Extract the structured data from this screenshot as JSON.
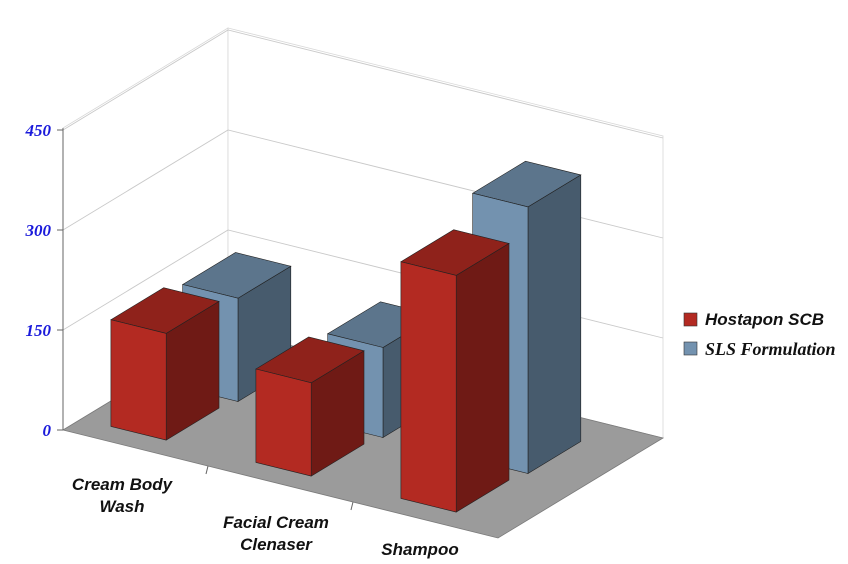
{
  "chart_data": {
    "type": "bar",
    "subtype": "3d-clustered",
    "title": "",
    "xlabel": "",
    "ylabel": "",
    "ylim": [
      0,
      450
    ],
    "yticks": [
      "0",
      "150",
      "300",
      "450"
    ],
    "categories": [
      "Cream Body Wash",
      "Facial Cream Clenaser",
      "Shampoo"
    ],
    "category_lines": [
      [
        "Cream Body",
        "Wash"
      ],
      [
        "Facial Cream",
        "Clenaser"
      ],
      [
        "Shampoo"
      ]
    ],
    "series": [
      {
        "name": "Hostapon SCB",
        "values": [
          160,
          140,
          355
        ],
        "color": "#b32a22"
      },
      {
        "name": "SLS Formulation",
        "values": [
          155,
          135,
          400
        ],
        "color": "#7392af"
      }
    ],
    "legend": "right",
    "grid": true,
    "floor_color": "#9b9b9b",
    "tick_color": "#1a1adb"
  }
}
